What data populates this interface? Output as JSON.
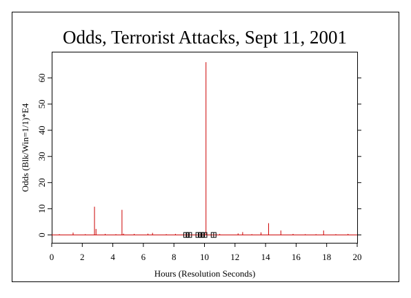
{
  "chart_data": {
    "type": "bar",
    "title": "Odds, Terrorist Attacks, Sept 11, 2001",
    "xlabel": "Hours (Resolution Seconds)",
    "ylabel": "Odds (Blk/Win=1/1)*E4",
    "xlim": [
      0,
      20
    ],
    "ylim": [
      -3,
      70
    ],
    "x_ticks": [
      0,
      2,
      4,
      6,
      8,
      10,
      12,
      14,
      16,
      18,
      20
    ],
    "y_ticks": [
      0,
      10,
      20,
      30,
      40,
      50,
      60
    ],
    "grid": false,
    "legend": "none",
    "series": [
      {
        "color": "#cc0000",
        "spikes": [
          {
            "x": 0.5,
            "y": 0.3
          },
          {
            "x": 1.4,
            "y": 0.9
          },
          {
            "x": 2.2,
            "y": 0.3
          },
          {
            "x": 2.8,
            "y": 10.8
          },
          {
            "x": 2.9,
            "y": 2.3
          },
          {
            "x": 3.5,
            "y": 0.4
          },
          {
            "x": 4.2,
            "y": 0.3
          },
          {
            "x": 4.6,
            "y": 9.6
          },
          {
            "x": 4.7,
            "y": 0.5
          },
          {
            "x": 5.4,
            "y": 0.4
          },
          {
            "x": 6.3,
            "y": 0.5
          },
          {
            "x": 6.6,
            "y": 0.8
          },
          {
            "x": 7.5,
            "y": 0.3
          },
          {
            "x": 8.1,
            "y": 0.4
          },
          {
            "x": 9.0,
            "y": 0.3
          },
          {
            "x": 10.1,
            "y": 66.0
          },
          {
            "x": 11.0,
            "y": 0.4
          },
          {
            "x": 12.2,
            "y": 0.6
          },
          {
            "x": 12.5,
            "y": 1.1
          },
          {
            "x": 13.1,
            "y": 0.3
          },
          {
            "x": 13.7,
            "y": 1.0
          },
          {
            "x": 14.2,
            "y": 4.5
          },
          {
            "x": 15.0,
            "y": 1.7
          },
          {
            "x": 15.8,
            "y": 0.4
          },
          {
            "x": 16.6,
            "y": 0.3
          },
          {
            "x": 17.3,
            "y": 0.3
          },
          {
            "x": 17.8,
            "y": 1.7
          },
          {
            "x": 18.6,
            "y": 0.3
          },
          {
            "x": 19.4,
            "y": 0.4
          }
        ]
      }
    ],
    "event_markers": [
      8.8,
      9.0,
      9.6,
      9.8,
      10.0,
      10.6
    ]
  }
}
